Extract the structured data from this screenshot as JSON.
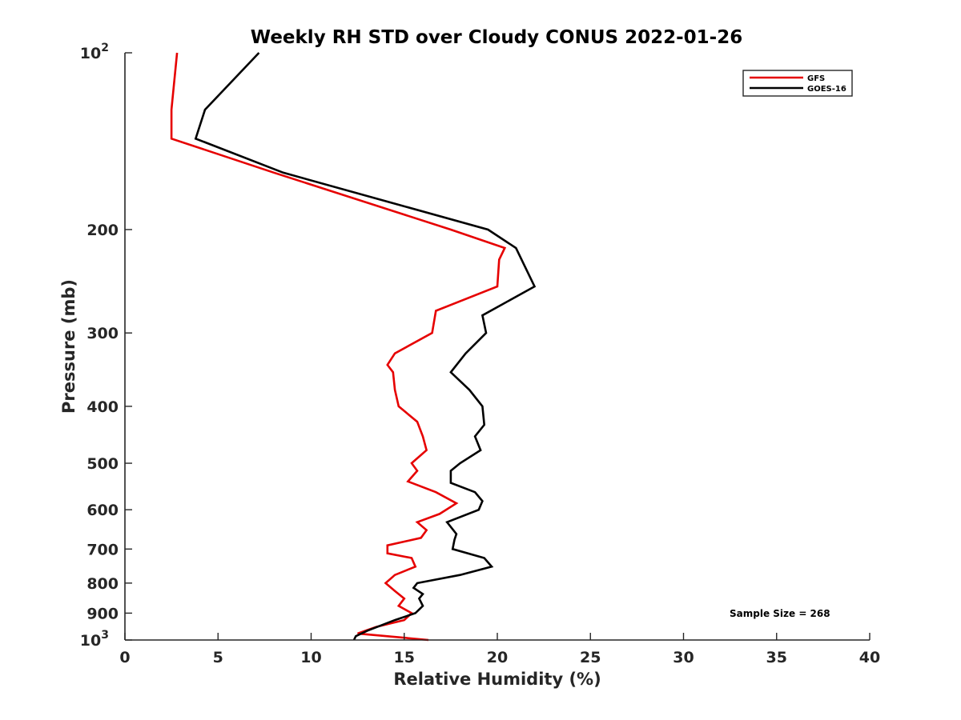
{
  "chart_data": {
    "type": "line",
    "title": "Weekly RH STD over Cloudy CONUS 2022-01-26",
    "xlabel": "Relative Humidity (%)",
    "ylabel": "Pressure (mb)",
    "xlim": [
      0,
      40
    ],
    "ylim": [
      100,
      1000
    ],
    "y_scale": "log",
    "y_reversed": true,
    "x_ticks": [
      "0",
      "5",
      "10",
      "15",
      "20",
      "25",
      "30",
      "35",
      "40"
    ],
    "y_ticks": [
      {
        "value": 100,
        "base": "10",
        "exp": "2"
      },
      {
        "value": 200,
        "label": "200"
      },
      {
        "value": 300,
        "label": "300"
      },
      {
        "value": 400,
        "label": "400"
      },
      {
        "value": 500,
        "label": "500"
      },
      {
        "value": 600,
        "label": "600"
      },
      {
        "value": 700,
        "label": "700"
      },
      {
        "value": 800,
        "label": "800"
      },
      {
        "value": 900,
        "label": "900"
      },
      {
        "value": 1000,
        "base": "10",
        "exp": "3"
      }
    ],
    "grid": false,
    "legend_position": "top-right",
    "colors": {
      "GFS": "#e60000",
      "GOES-16": "#000000",
      "axis": "#262626"
    },
    "series": [
      {
        "name": "GFS",
        "color": "#e60000",
        "points": [
          {
            "x": 16.3,
            "y": 1000
          },
          {
            "x": 12.5,
            "y": 975
          },
          {
            "x": 13.5,
            "y": 950
          },
          {
            "x": 15.0,
            "y": 925
          },
          {
            "x": 15.4,
            "y": 900
          },
          {
            "x": 14.7,
            "y": 875
          },
          {
            "x": 15.0,
            "y": 850
          },
          {
            "x": 14.5,
            "y": 825
          },
          {
            "x": 14.0,
            "y": 800
          },
          {
            "x": 14.5,
            "y": 775
          },
          {
            "x": 15.6,
            "y": 750
          },
          {
            "x": 15.4,
            "y": 725
          },
          {
            "x": 14.1,
            "y": 712
          },
          {
            "x": 14.1,
            "y": 690
          },
          {
            "x": 15.9,
            "y": 670
          },
          {
            "x": 16.2,
            "y": 650
          },
          {
            "x": 15.7,
            "y": 630
          },
          {
            "x": 16.9,
            "y": 610
          },
          {
            "x": 17.8,
            "y": 585
          },
          {
            "x": 16.7,
            "y": 560
          },
          {
            "x": 15.2,
            "y": 537
          },
          {
            "x": 15.7,
            "y": 515
          },
          {
            "x": 15.4,
            "y": 500
          },
          {
            "x": 16.2,
            "y": 475
          },
          {
            "x": 16.0,
            "y": 450
          },
          {
            "x": 15.7,
            "y": 425
          },
          {
            "x": 14.7,
            "y": 400
          },
          {
            "x": 14.5,
            "y": 375
          },
          {
            "x": 14.4,
            "y": 350
          },
          {
            "x": 14.1,
            "y": 340
          },
          {
            "x": 14.5,
            "y": 325
          },
          {
            "x": 16.5,
            "y": 300
          },
          {
            "x": 16.7,
            "y": 275
          },
          {
            "x": 20.0,
            "y": 250
          },
          {
            "x": 20.1,
            "y": 225
          },
          {
            "x": 20.4,
            "y": 215
          },
          {
            "x": 17.5,
            "y": 200
          },
          {
            "x": 8.0,
            "y": 160
          },
          {
            "x": 2.5,
            "y": 140
          },
          {
            "x": 2.5,
            "y": 125
          },
          {
            "x": 2.8,
            "y": 100
          }
        ]
      },
      {
        "name": "GOES-16",
        "color": "#000000",
        "points": [
          {
            "x": 12.3,
            "y": 1000
          },
          {
            "x": 12.4,
            "y": 985
          },
          {
            "x": 13.0,
            "y": 965
          },
          {
            "x": 14.5,
            "y": 925
          },
          {
            "x": 15.6,
            "y": 900
          },
          {
            "x": 16.0,
            "y": 875
          },
          {
            "x": 15.8,
            "y": 850
          },
          {
            "x": 16.0,
            "y": 835
          },
          {
            "x": 15.5,
            "y": 815
          },
          {
            "x": 15.7,
            "y": 800
          },
          {
            "x": 18.0,
            "y": 775
          },
          {
            "x": 19.7,
            "y": 750
          },
          {
            "x": 19.3,
            "y": 725
          },
          {
            "x": 17.6,
            "y": 700
          },
          {
            "x": 17.7,
            "y": 675
          },
          {
            "x": 17.8,
            "y": 660
          },
          {
            "x": 17.3,
            "y": 630
          },
          {
            "x": 19.0,
            "y": 600
          },
          {
            "x": 19.2,
            "y": 580
          },
          {
            "x": 18.8,
            "y": 560
          },
          {
            "x": 17.5,
            "y": 540
          },
          {
            "x": 17.5,
            "y": 515
          },
          {
            "x": 18.0,
            "y": 500
          },
          {
            "x": 19.1,
            "y": 475
          },
          {
            "x": 18.8,
            "y": 450
          },
          {
            "x": 19.3,
            "y": 430
          },
          {
            "x": 19.2,
            "y": 400
          },
          {
            "x": 18.5,
            "y": 375
          },
          {
            "x": 17.5,
            "y": 350
          },
          {
            "x": 18.3,
            "y": 325
          },
          {
            "x": 19.4,
            "y": 300
          },
          {
            "x": 19.2,
            "y": 280
          },
          {
            "x": 22.0,
            "y": 250
          },
          {
            "x": 21.0,
            "y": 215
          },
          {
            "x": 19.5,
            "y": 200
          },
          {
            "x": 8.5,
            "y": 160
          },
          {
            "x": 3.8,
            "y": 140
          },
          {
            "x": 4.3,
            "y": 125
          },
          {
            "x": 7.2,
            "y": 100
          }
        ]
      }
    ],
    "annotations": [
      "Sample Size = 268"
    ]
  }
}
